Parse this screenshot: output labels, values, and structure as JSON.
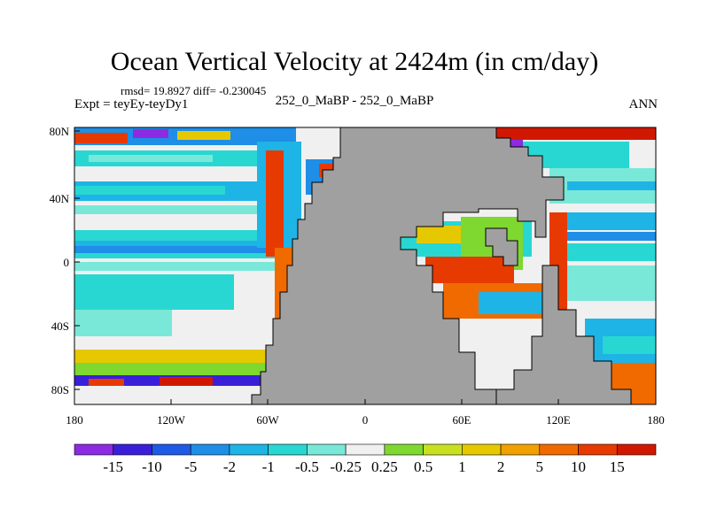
{
  "title": "Ocean Vertical Velocity at 2424m (in cm/day)",
  "stats": "rmsd= 19.8927 diff= -0.230045",
  "left_label": "Expt = teyEy-teyDy1",
  "center_label": "252_0_MaBP - 252_0_MaBP",
  "right_label": "ANN",
  "map": {
    "projection": "cylindrical equidistant",
    "lon_range": [
      -180,
      180
    ],
    "lat_range": [
      -90,
      90
    ],
    "land_color": "#a0a0a0",
    "x_ticks": [
      {
        "lon": -180,
        "label": "180"
      },
      {
        "lon": -120,
        "label": "120W"
      },
      {
        "lon": -60,
        "label": "60W"
      },
      {
        "lon": 0,
        "label": "0"
      },
      {
        "lon": 60,
        "label": "60E"
      },
      {
        "lon": 120,
        "label": "120E"
      },
      {
        "lon": 180,
        "label": "180"
      }
    ],
    "y_ticks": [
      {
        "lat": 80,
        "label": "80N"
      },
      {
        "lat": 40,
        "label": "40N"
      },
      {
        "lat": 0,
        "label": "0"
      },
      {
        "lat": -40,
        "label": "40S"
      },
      {
        "lat": -80,
        "label": "80S"
      }
    ]
  },
  "colorbar": {
    "labels": [
      "-15",
      "-10",
      "-5",
      "-2",
      "-1",
      "-0.5",
      "-0.25",
      "0.25",
      "0.5",
      "1",
      "2",
      "5",
      "10",
      "15"
    ],
    "colors": [
      "#8c2be2",
      "#3a1fd9",
      "#1e5ae6",
      "#1e8ee6",
      "#1eb4e6",
      "#28d7d2",
      "#7ae8d8",
      "#f0f0f0",
      "#7ed830",
      "#c8e020",
      "#e6c800",
      "#f0a000",
      "#f06a00",
      "#e63a00",
      "#d01800"
    ]
  }
}
